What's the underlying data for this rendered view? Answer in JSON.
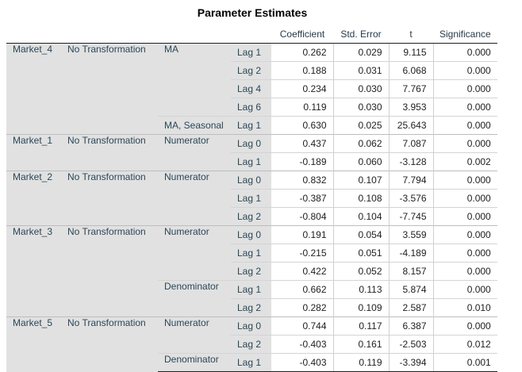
{
  "title": "Parameter Estimates",
  "columns": [
    "Coefficient",
    "Std. Error",
    "t",
    "Significance"
  ],
  "rows": [
    {
      "lag": "Lag 1",
      "coef": "0.262",
      "se": "0.029",
      "t": "9.115",
      "sig": "0.000"
    },
    {
      "lag": "Lag 2",
      "coef": "0.188",
      "se": "0.031",
      "t": "6.068",
      "sig": "0.000"
    },
    {
      "lag": "Lag 4",
      "coef": "0.234",
      "se": "0.030",
      "t": "7.767",
      "sig": "0.000"
    },
    {
      "lag": "Lag 6",
      "coef": "0.119",
      "se": "0.030",
      "t": "3.953",
      "sig": "0.000"
    },
    {
      "lag": "Lag 1",
      "coef": "0.630",
      "se": "0.025",
      "t": "25.643",
      "sig": "0.000"
    },
    {
      "lag": "Lag 0",
      "coef": "0.437",
      "se": "0.062",
      "t": "7.087",
      "sig": "0.000"
    },
    {
      "lag": "Lag 1",
      "coef": "-0.189",
      "se": "0.060",
      "t": "-3.128",
      "sig": "0.002"
    },
    {
      "lag": "Lag 0",
      "coef": "0.832",
      "se": "0.107",
      "t": "7.794",
      "sig": "0.000"
    },
    {
      "lag": "Lag 1",
      "coef": "-0.387",
      "se": "0.108",
      "t": "-3.576",
      "sig": "0.000"
    },
    {
      "lag": "Lag 2",
      "coef": "-0.804",
      "se": "0.104",
      "t": "-7.745",
      "sig": "0.000"
    },
    {
      "lag": "Lag 0",
      "coef": "0.191",
      "se": "0.054",
      "t": "3.559",
      "sig": "0.000"
    },
    {
      "lag": "Lag 1",
      "coef": "-0.215",
      "se": "0.051",
      "t": "-4.189",
      "sig": "0.000"
    },
    {
      "lag": "Lag 2",
      "coef": "0.422",
      "se": "0.052",
      "t": "8.157",
      "sig": "0.000"
    },
    {
      "lag": "Lag 1",
      "coef": "0.662",
      "se": "0.113",
      "t": "5.874",
      "sig": "0.000"
    },
    {
      "lag": "Lag 2",
      "coef": "0.282",
      "se": "0.109",
      "t": "2.587",
      "sig": "0.010"
    },
    {
      "lag": "Lag 0",
      "coef": "0.744",
      "se": "0.117",
      "t": "6.387",
      "sig": "0.000"
    },
    {
      "lag": "Lag 2",
      "coef": "-0.403",
      "se": "0.161",
      "t": "-2.503",
      "sig": "0.012"
    },
    {
      "lag": "Lag 1",
      "coef": "-0.403",
      "se": "0.119",
      "t": "-3.394",
      "sig": "0.001"
    }
  ],
  "groups": {
    "m4": {
      "market": "Market_4",
      "transform": "No Transformation",
      "ma": "MA",
      "ma_seasonal": "MA, Seasonal"
    },
    "m1": {
      "market": "Market_1",
      "transform": "No Transformation",
      "numerator": "Numerator"
    },
    "m2": {
      "market": "Market_2",
      "transform": "No Transformation",
      "numerator": "Numerator"
    },
    "m3": {
      "market": "Market_3",
      "transform": "No Transformation",
      "numerator": "Numerator",
      "denominator": "Denominator"
    },
    "m5": {
      "market": "Market_5",
      "transform": "No Transformation",
      "numerator": "Numerator",
      "denominator": "Denominator"
    }
  },
  "colors": {
    "stub_bg": "#e1e1e1",
    "stub_text": "#2b4757",
    "value_text": "#1e1e1e"
  }
}
